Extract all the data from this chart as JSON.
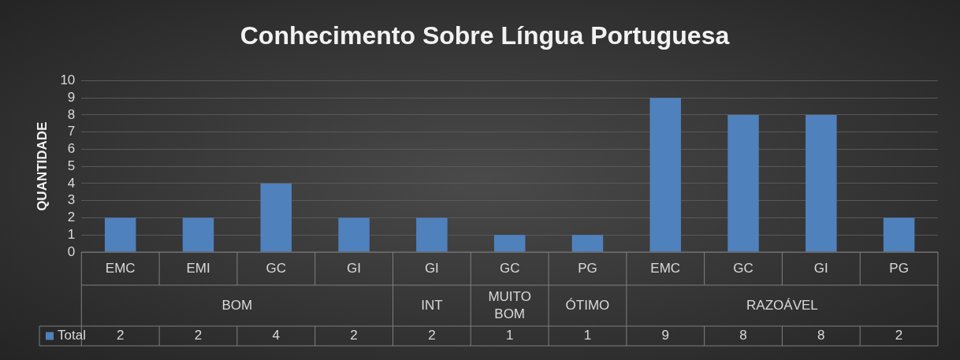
{
  "chart_data": {
    "type": "bar",
    "title": "Conhecimento Sobre Língua Portuguesa",
    "ylabel": "QUANTIDADE",
    "categories": [
      "EMC",
      "EMI",
      "GC",
      "GI",
      "GI",
      "GC",
      "PG",
      "EMC",
      "GC",
      "GI",
      "PG"
    ],
    "annotations": [
      "BOM",
      "INT",
      "MUITO BOM",
      "ÓTIMO",
      "RAZOÁVEL"
    ],
    "series": [
      {
        "name": "Total",
        "color": "#4f81bd",
        "values": [
          2,
          2,
          4,
          2,
          2,
          1,
          1,
          9,
          8,
          8,
          2
        ]
      }
    ],
    "ylim": [
      0,
      10
    ],
    "yticks": [
      0,
      1,
      2,
      3,
      4,
      5,
      6,
      7,
      8,
      9,
      10
    ],
    "grid": "y",
    "legend": "bottom left",
    "data_labels": true
  }
}
